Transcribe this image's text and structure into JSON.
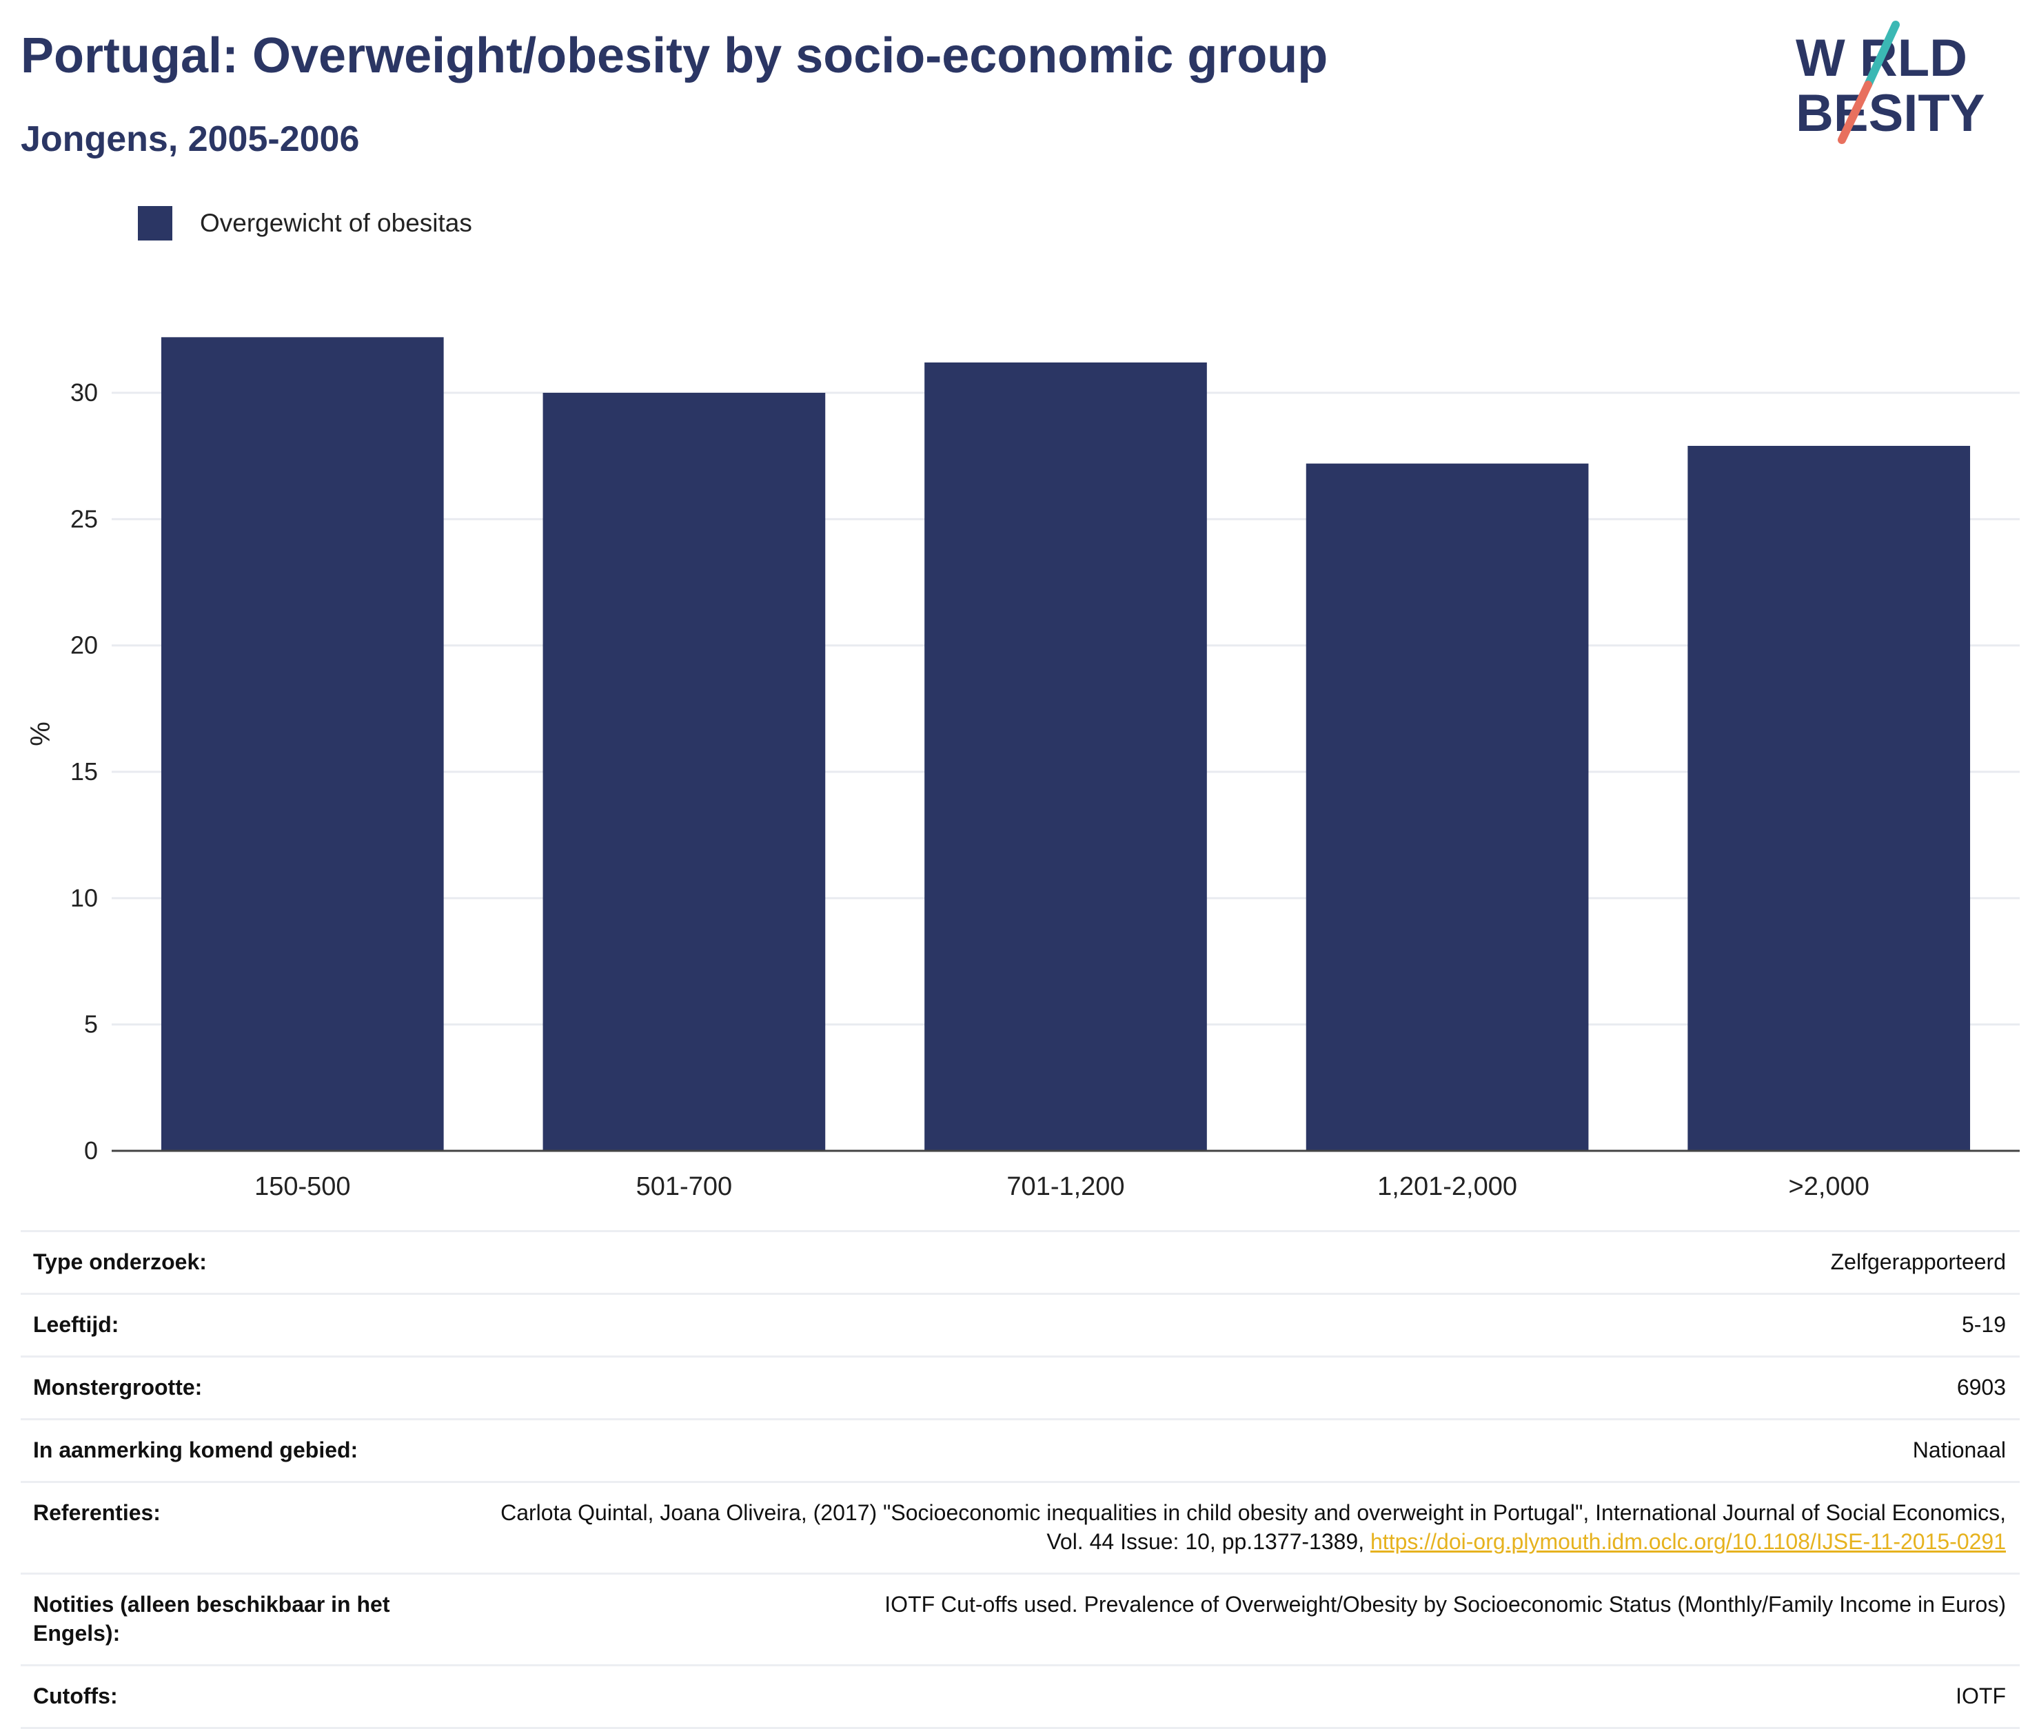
{
  "header": {
    "title": "Portugal: Overweight/obesity by socio-economic group",
    "subtitle": "Jongens, 2005-2006"
  },
  "logo": {
    "line1": "W RLD",
    "line2": "BESITY",
    "colors": {
      "text": "#2b3664",
      "slash_top": "#3bb8b4",
      "slash_bottom": "#e8705e"
    }
  },
  "legend": {
    "label": "Overgewicht of obesitas"
  },
  "colors": {
    "bar": "#2b3664",
    "title": "#2b3664",
    "link": "#e6b21e",
    "grid": "#e9ebf0"
  },
  "chart_data": {
    "type": "bar",
    "categories": [
      "150-500",
      "501-700",
      "701-1,200",
      "1,201-2,000",
      ">2,000"
    ],
    "series": [
      {
        "name": "Overgewicht of obesitas",
        "values": [
          32.2,
          30.0,
          31.2,
          27.2,
          27.9
        ]
      }
    ],
    "title": "Portugal: Overweight/obesity by socio-economic group",
    "subtitle": "Jongens, 2005-2006",
    "xlabel": "",
    "ylabel": "%",
    "ylim": [
      0,
      33
    ],
    "yticks": [
      0,
      5,
      10,
      15,
      20,
      25,
      30
    ],
    "grid": true,
    "legend_position": "top-left"
  },
  "meta": {
    "rows": [
      {
        "label": "Type onderzoek:",
        "value": "Zelfgerapporteerd"
      },
      {
        "label": "Leeftijd:",
        "value": "5-19"
      },
      {
        "label": "Monstergrootte:",
        "value": "6903"
      },
      {
        "label": "In aanmerking komend gebied:",
        "value": "Nationaal"
      },
      {
        "label": "Referenties:",
        "value": "Carlota Quintal, Joana Oliveira, (2017) \"Socioeconomic inequalities in child obesity and overweight in Portugal\", International Journal of Social Economics, Vol. 44 Issue: 10, pp.1377-1389,",
        "link": "https://doi-org.plymouth.idm.oclc.org/10.1108/IJSE-11-2015-0291"
      },
      {
        "label": "Notities (alleen beschikbaar in het Engels):",
        "value": "IOTF Cut-offs used. Prevalence of Overweight/Obesity by Socioeconomic Status (Monthly/Family Income in Euros)"
      },
      {
        "label": "Cutoffs:",
        "value": "IOTF"
      }
    ]
  }
}
